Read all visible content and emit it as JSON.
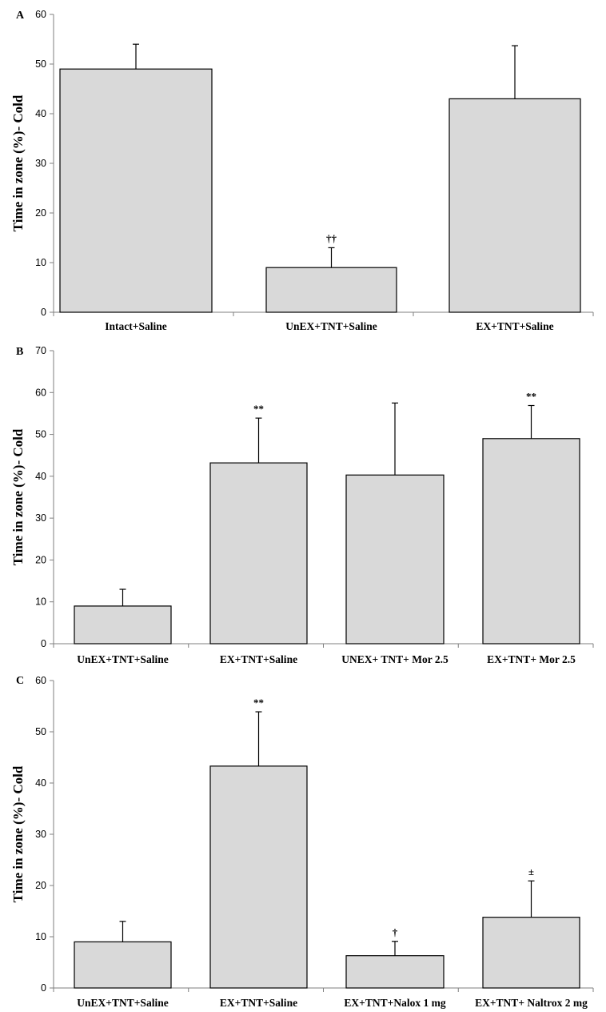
{
  "chart_data": [
    {
      "type": "bar",
      "panel": "A",
      "ylabel": "Time in zone (%)- Cold",
      "ylim": [
        0,
        60
      ],
      "yticks": [
        0,
        10,
        20,
        30,
        40,
        50,
        60
      ],
      "categories": [
        "Intact+Saline",
        "UnEX+TNT+Saline",
        "EX+TNT+Saline"
      ],
      "values": [
        49,
        9,
        43
      ],
      "errors": [
        5,
        4,
        10.7
      ],
      "annotations": [
        "",
        "††",
        ""
      ]
    },
    {
      "type": "bar",
      "panel": "B",
      "ylabel": "Time in zone (%)- Cold",
      "ylim": [
        0,
        70
      ],
      "yticks": [
        0,
        10,
        20,
        30,
        40,
        50,
        60,
        70
      ],
      "categories": [
        "UnEX+TNT+Saline",
        "EX+TNT+Saline",
        "UNEX+ TNT+ Mor 2.5",
        "EX+TNT+ Mor 2.5"
      ],
      "values": [
        9,
        43.2,
        40.3,
        49
      ],
      "errors": [
        4,
        10.7,
        17.2,
        7.9
      ],
      "annotations": [
        "",
        "**",
        "",
        "**"
      ]
    },
    {
      "type": "bar",
      "panel": "C",
      "ylabel": "Time in zone (%)- Cold",
      "ylim": [
        0,
        60
      ],
      "yticks": [
        0,
        10,
        20,
        30,
        40,
        50,
        60
      ],
      "categories": [
        "UnEX+TNT+Saline",
        "EX+TNT+Saline",
        "EX+TNT+Nalox 1 mg",
        "EX+TNT+ Naltrox 2 mg"
      ],
      "values": [
        9,
        43.3,
        6.3,
        13.8
      ],
      "errors": [
        4,
        10.6,
        2.8,
        7.1
      ],
      "annotations": [
        "",
        "**",
        "†",
        "±"
      ]
    }
  ]
}
